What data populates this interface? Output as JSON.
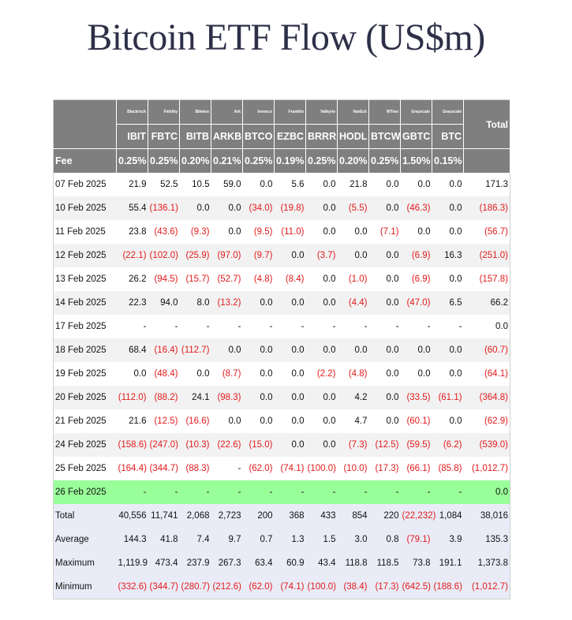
{
  "title": "Bitcoin ETF Flow (US$m)",
  "issuers": [
    "Blackrock",
    "Fidelity",
    "Bitwise",
    "Ark",
    "Invesco",
    "Franklin",
    "Valkyrie",
    "VanEck",
    "WTree",
    "Grayscale",
    "Grayscale"
  ],
  "total_label": "Total",
  "tickers": [
    "IBIT",
    "FBTC",
    "BITB",
    "ARKB",
    "BTCO",
    "EZBC",
    "BRRR",
    "HODL",
    "BTCW",
    "GBTC",
    "BTC"
  ],
  "fee_label": "Fee",
  "fees": [
    "0.25%",
    "0.25%",
    "0.20%",
    "0.21%",
    "0.25%",
    "0.19%",
    "0.25%",
    "0.20%",
    "0.25%",
    "1.50%",
    "0.15%"
  ],
  "rows": [
    {
      "date": "07 Feb 2025",
      "values": [
        "21.9",
        "52.5",
        "10.5",
        "59.0",
        "0.0",
        "5.6",
        "0.0",
        "21.8",
        "0.0",
        "0.0",
        "0.0"
      ],
      "total": "171.3"
    },
    {
      "date": "10 Feb 2025",
      "values": [
        "55.4",
        "(136.1)",
        "0.0",
        "0.0",
        "(34.0)",
        "(19.8)",
        "0.0",
        "(5.5)",
        "0.0",
        "(46.3)",
        "0.0"
      ],
      "total": "(186.3)"
    },
    {
      "date": "11 Feb 2025",
      "values": [
        "23.8",
        "(43.6)",
        "(9.3)",
        "0.0",
        "(9.5)",
        "(11.0)",
        "0.0",
        "0.0",
        "(7.1)",
        "0.0",
        "0.0"
      ],
      "total": "(56.7)"
    },
    {
      "date": "12 Feb 2025",
      "values": [
        "(22.1)",
        "(102.0)",
        "(25.9)",
        "(97.0)",
        "(9.7)",
        "0.0",
        "(3.7)",
        "0.0",
        "0.0",
        "(6.9)",
        "16.3"
      ],
      "total": "(251.0)"
    },
    {
      "date": "13 Feb 2025",
      "values": [
        "26.2",
        "(94.5)",
        "(15.7)",
        "(52.7)",
        "(4.8)",
        "(8.4)",
        "0.0",
        "(1.0)",
        "0.0",
        "(6.9)",
        "0.0"
      ],
      "total": "(157.8)"
    },
    {
      "date": "14 Feb 2025",
      "values": [
        "22.3",
        "94.0",
        "8.0",
        "(13.2)",
        "0.0",
        "0.0",
        "0.0",
        "(4.4)",
        "0.0",
        "(47.0)",
        "6.5"
      ],
      "total": "66.2"
    },
    {
      "date": "17 Feb 2025",
      "values": [
        "-",
        "-",
        "-",
        "-",
        "-",
        "-",
        "-",
        "-",
        "-",
        "-",
        "-"
      ],
      "total": "0.0"
    },
    {
      "date": "18 Feb 2025",
      "values": [
        "68.4",
        "(16.4)",
        "(112.7)",
        "0.0",
        "0.0",
        "0.0",
        "0.0",
        "0.0",
        "0.0",
        "0.0",
        "0.0"
      ],
      "total": "(60.7)"
    },
    {
      "date": "19 Feb 2025",
      "values": [
        "0.0",
        "(48.4)",
        "0.0",
        "(8.7)",
        "0.0",
        "0.0",
        "(2.2)",
        "(4.8)",
        "0.0",
        "0.0",
        "0.0"
      ],
      "total": "(64.1)"
    },
    {
      "date": "20 Feb 2025",
      "values": [
        "(112.0)",
        "(88.2)",
        "24.1",
        "(98.3)",
        "0.0",
        "0.0",
        "0.0",
        "4.2",
        "0.0",
        "(33.5)",
        "(61.1)"
      ],
      "total": "(364.8)"
    },
    {
      "date": "21 Feb 2025",
      "values": [
        "21.6",
        "(12.5)",
        "(16.6)",
        "0.0",
        "0.0",
        "0.0",
        "0.0",
        "4.7",
        "0.0",
        "(60.1)",
        "0.0"
      ],
      "total": "(62.9)"
    },
    {
      "date": "24 Feb 2025",
      "values": [
        "(158.6)",
        "(247.0)",
        "(10.3)",
        "(22.6)",
        "(15.0)",
        "0.0",
        "0.0",
        "(7.3)",
        "(12.5)",
        "(59.5)",
        "(6.2)"
      ],
      "total": "(539.0)"
    },
    {
      "date": "25 Feb 2025",
      "values": [
        "(164.4)",
        "(344.7)",
        "(88.3)",
        "-",
        "(62.0)",
        "(74.1)",
        "(100.0)",
        "(10.0)",
        "(17.3)",
        "(66.1)",
        "(85.8)"
      ],
      "total": "(1,012.7)"
    },
    {
      "date": "26 Feb 2025",
      "values": [
        "-",
        "-",
        "-",
        "-",
        "-",
        "-",
        "-",
        "-",
        "-",
        "-",
        "-"
      ],
      "total": "0.0",
      "highlight": true
    }
  ],
  "stats": [
    {
      "label": "Total",
      "values": [
        "40,556",
        "11,741",
        "2,068",
        "2,723",
        "200",
        "368",
        "433",
        "854",
        "220",
        "(22,232)",
        "1,084"
      ],
      "total": "38,016"
    },
    {
      "label": "Average",
      "values": [
        "144.3",
        "41.8",
        "7.4",
        "9.7",
        "0.7",
        "1.3",
        "1.5",
        "3.0",
        "0.8",
        "(79.1)",
        "3.9"
      ],
      "total": "135.3"
    },
    {
      "label": "Maximum",
      "values": [
        "1,119.9",
        "473.4",
        "237.9",
        "267.3",
        "63.4",
        "60.9",
        "43.4",
        "118.8",
        "118.5",
        "73.8",
        "191.1"
      ],
      "total": "1,373.8"
    },
    {
      "label": "Minimum",
      "values": [
        "(332.6)",
        "(344.7)",
        "(280.7)",
        "(212.6)",
        "(62.0)",
        "(74.1)",
        "(100.0)",
        "(38.4)",
        "(17.3)",
        "(642.5)",
        "(188.6)"
      ],
      "total": "(1,012.7)"
    }
  ],
  "colors": {
    "header_bg": "#7f7f7f",
    "negative": "#e31a1c",
    "highlight": "#99ff99",
    "stats_bg": "#e9ecf7",
    "title": "#2d3047"
  }
}
